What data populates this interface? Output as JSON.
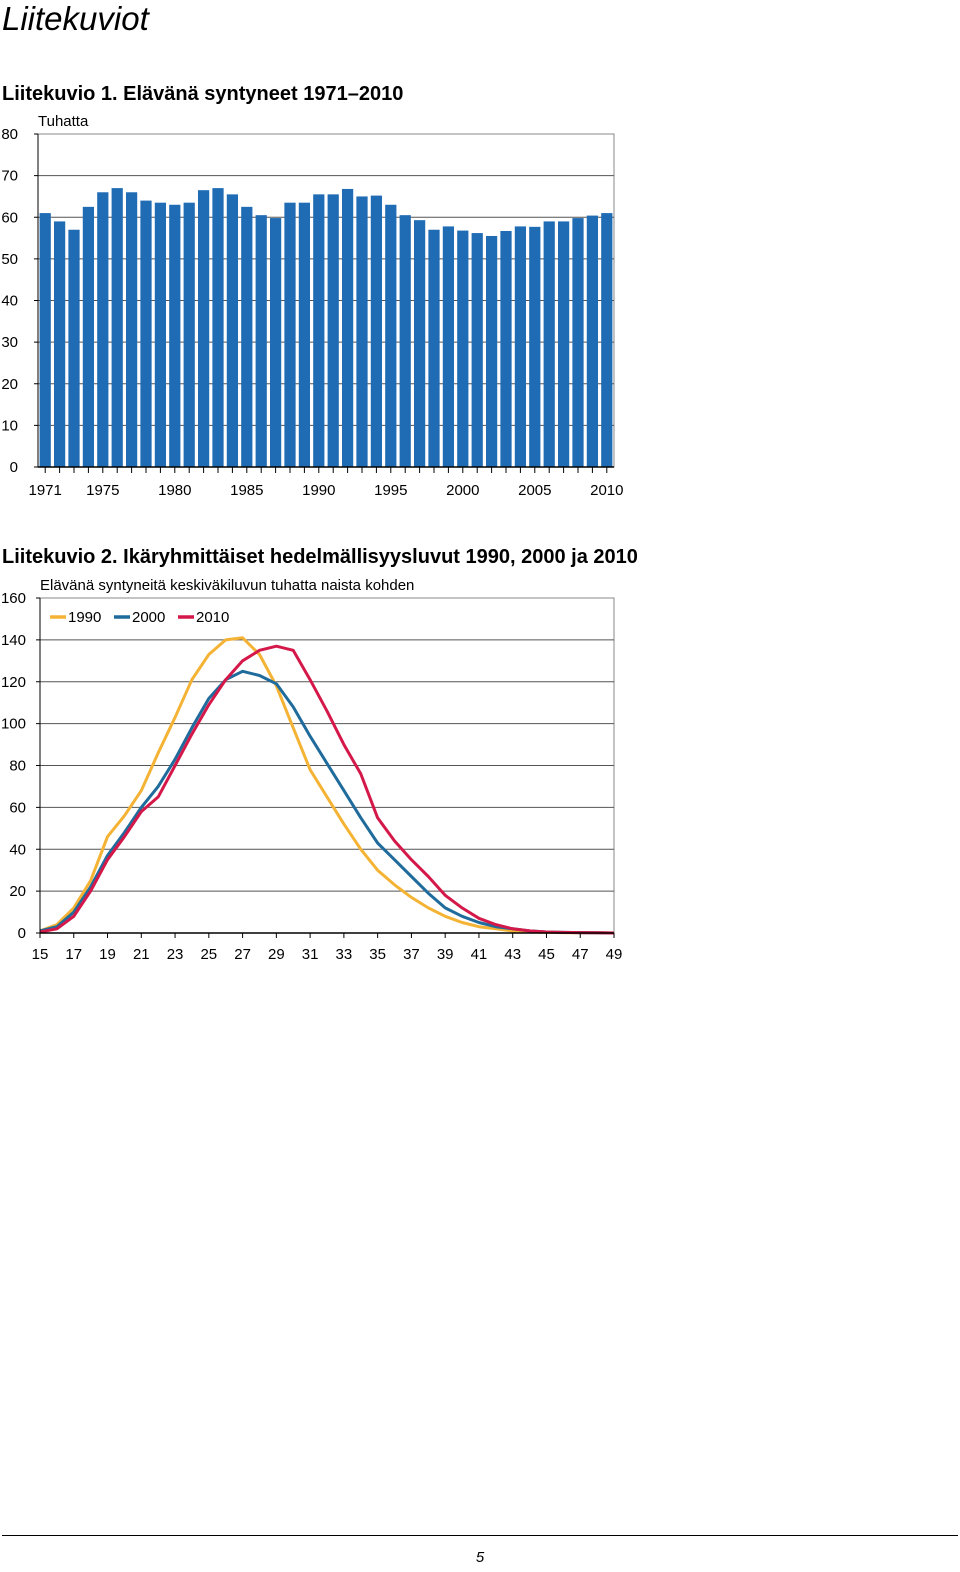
{
  "page": {
    "heading": "Liitekuviot",
    "page_number": "5"
  },
  "figure1": {
    "caption": "Liitekuvio 1. Elävänä syntyneet 1971–2010"
  },
  "figure2": {
    "caption": "Liitekuvio 2. Ikäryhmittäiset hedelmällisyysluvut 1990, 2000 ja 2010"
  },
  "chart_data": [
    {
      "type": "bar",
      "title": "",
      "ylabel": "Tuhatta",
      "xlabel": "",
      "x": [
        1971,
        1972,
        1973,
        1974,
        1975,
        1976,
        1977,
        1978,
        1979,
        1980,
        1981,
        1982,
        1983,
        1984,
        1985,
        1986,
        1987,
        1988,
        1989,
        1990,
        1991,
        1992,
        1993,
        1994,
        1995,
        1996,
        1997,
        1998,
        1999,
        2000,
        2001,
        2002,
        2003,
        2004,
        2005,
        2006,
        2007,
        2008,
        2009,
        2010
      ],
      "values": [
        61,
        59,
        57,
        62.5,
        66,
        67,
        66,
        64,
        63.5,
        63,
        63.5,
        66.5,
        67,
        65.5,
        62.5,
        60.5,
        59.8,
        63.5,
        63.5,
        65.5,
        65.5,
        66.8,
        65,
        65.2,
        63,
        60.5,
        59.3,
        57,
        57.8,
        56.8,
        56.2,
        55.5,
        56.7,
        57.8,
        57.7,
        59,
        59,
        59.8,
        60.4,
        61
      ],
      "x_tick_labels": [
        "1971",
        "1975",
        "1980",
        "1985",
        "1990",
        "1995",
        "2000",
        "2005",
        "2010"
      ],
      "y_tick_labels": [
        "0",
        "10",
        "20",
        "30",
        "40",
        "50",
        "60",
        "70",
        "80"
      ],
      "ylim": [
        0,
        80
      ],
      "grid": true,
      "color": "#1f6cb5"
    },
    {
      "type": "line",
      "title": "Elävänä syntyneitä keskiväkiluvun tuhatta naista kohden",
      "xlabel": "",
      "ylabel": "",
      "x": [
        15,
        16,
        17,
        18,
        19,
        20,
        21,
        22,
        23,
        24,
        25,
        26,
        27,
        28,
        29,
        30,
        31,
        32,
        33,
        34,
        35,
        36,
        37,
        38,
        39,
        40,
        41,
        42,
        43,
        44,
        45,
        46,
        47,
        48,
        49
      ],
      "x_tick_labels": [
        "15",
        "17",
        "19",
        "21",
        "23",
        "25",
        "27",
        "29",
        "31",
        "33",
        "35",
        "37",
        "39",
        "41",
        "43",
        "45",
        "47",
        "49"
      ],
      "y_tick_labels": [
        "0",
        "20",
        "40",
        "60",
        "80",
        "100",
        "120",
        "140",
        "160"
      ],
      "ylim": [
        0,
        160
      ],
      "grid": true,
      "legend_position": "top-left",
      "series": [
        {
          "name": "1990",
          "color": "#f5b335",
          "values": [
            1,
            4,
            12,
            25,
            46,
            56,
            68,
            86,
            103,
            121,
            133,
            140,
            141,
            133,
            118,
            98,
            78,
            65,
            52,
            40,
            30,
            23,
            17,
            12,
            8,
            5,
            3,
            2,
            1,
            0.5,
            0.3,
            0.2,
            0.1,
            0.1,
            0
          ]
        },
        {
          "name": "2000",
          "color": "#1f6b9c",
          "values": [
            1,
            3,
            10,
            22,
            37,
            48,
            60,
            70,
            83,
            98,
            112,
            121,
            125,
            123,
            119,
            108,
            94,
            81,
            68,
            55,
            43,
            35,
            27,
            19,
            12,
            8,
            5,
            3,
            2,
            1,
            0.5,
            0.3,
            0.2,
            0.1,
            0
          ]
        },
        {
          "name": "2010",
          "color": "#d4194a",
          "values": [
            0.5,
            2,
            8,
            20,
            35,
            46,
            58,
            65,
            80,
            95,
            109,
            121,
            130,
            135,
            137,
            135,
            121,
            106,
            90,
            76,
            55,
            44,
            35,
            27,
            18,
            12,
            7,
            4,
            2,
            1,
            0.5,
            0.3,
            0.2,
            0.1,
            0
          ]
        }
      ]
    }
  ]
}
